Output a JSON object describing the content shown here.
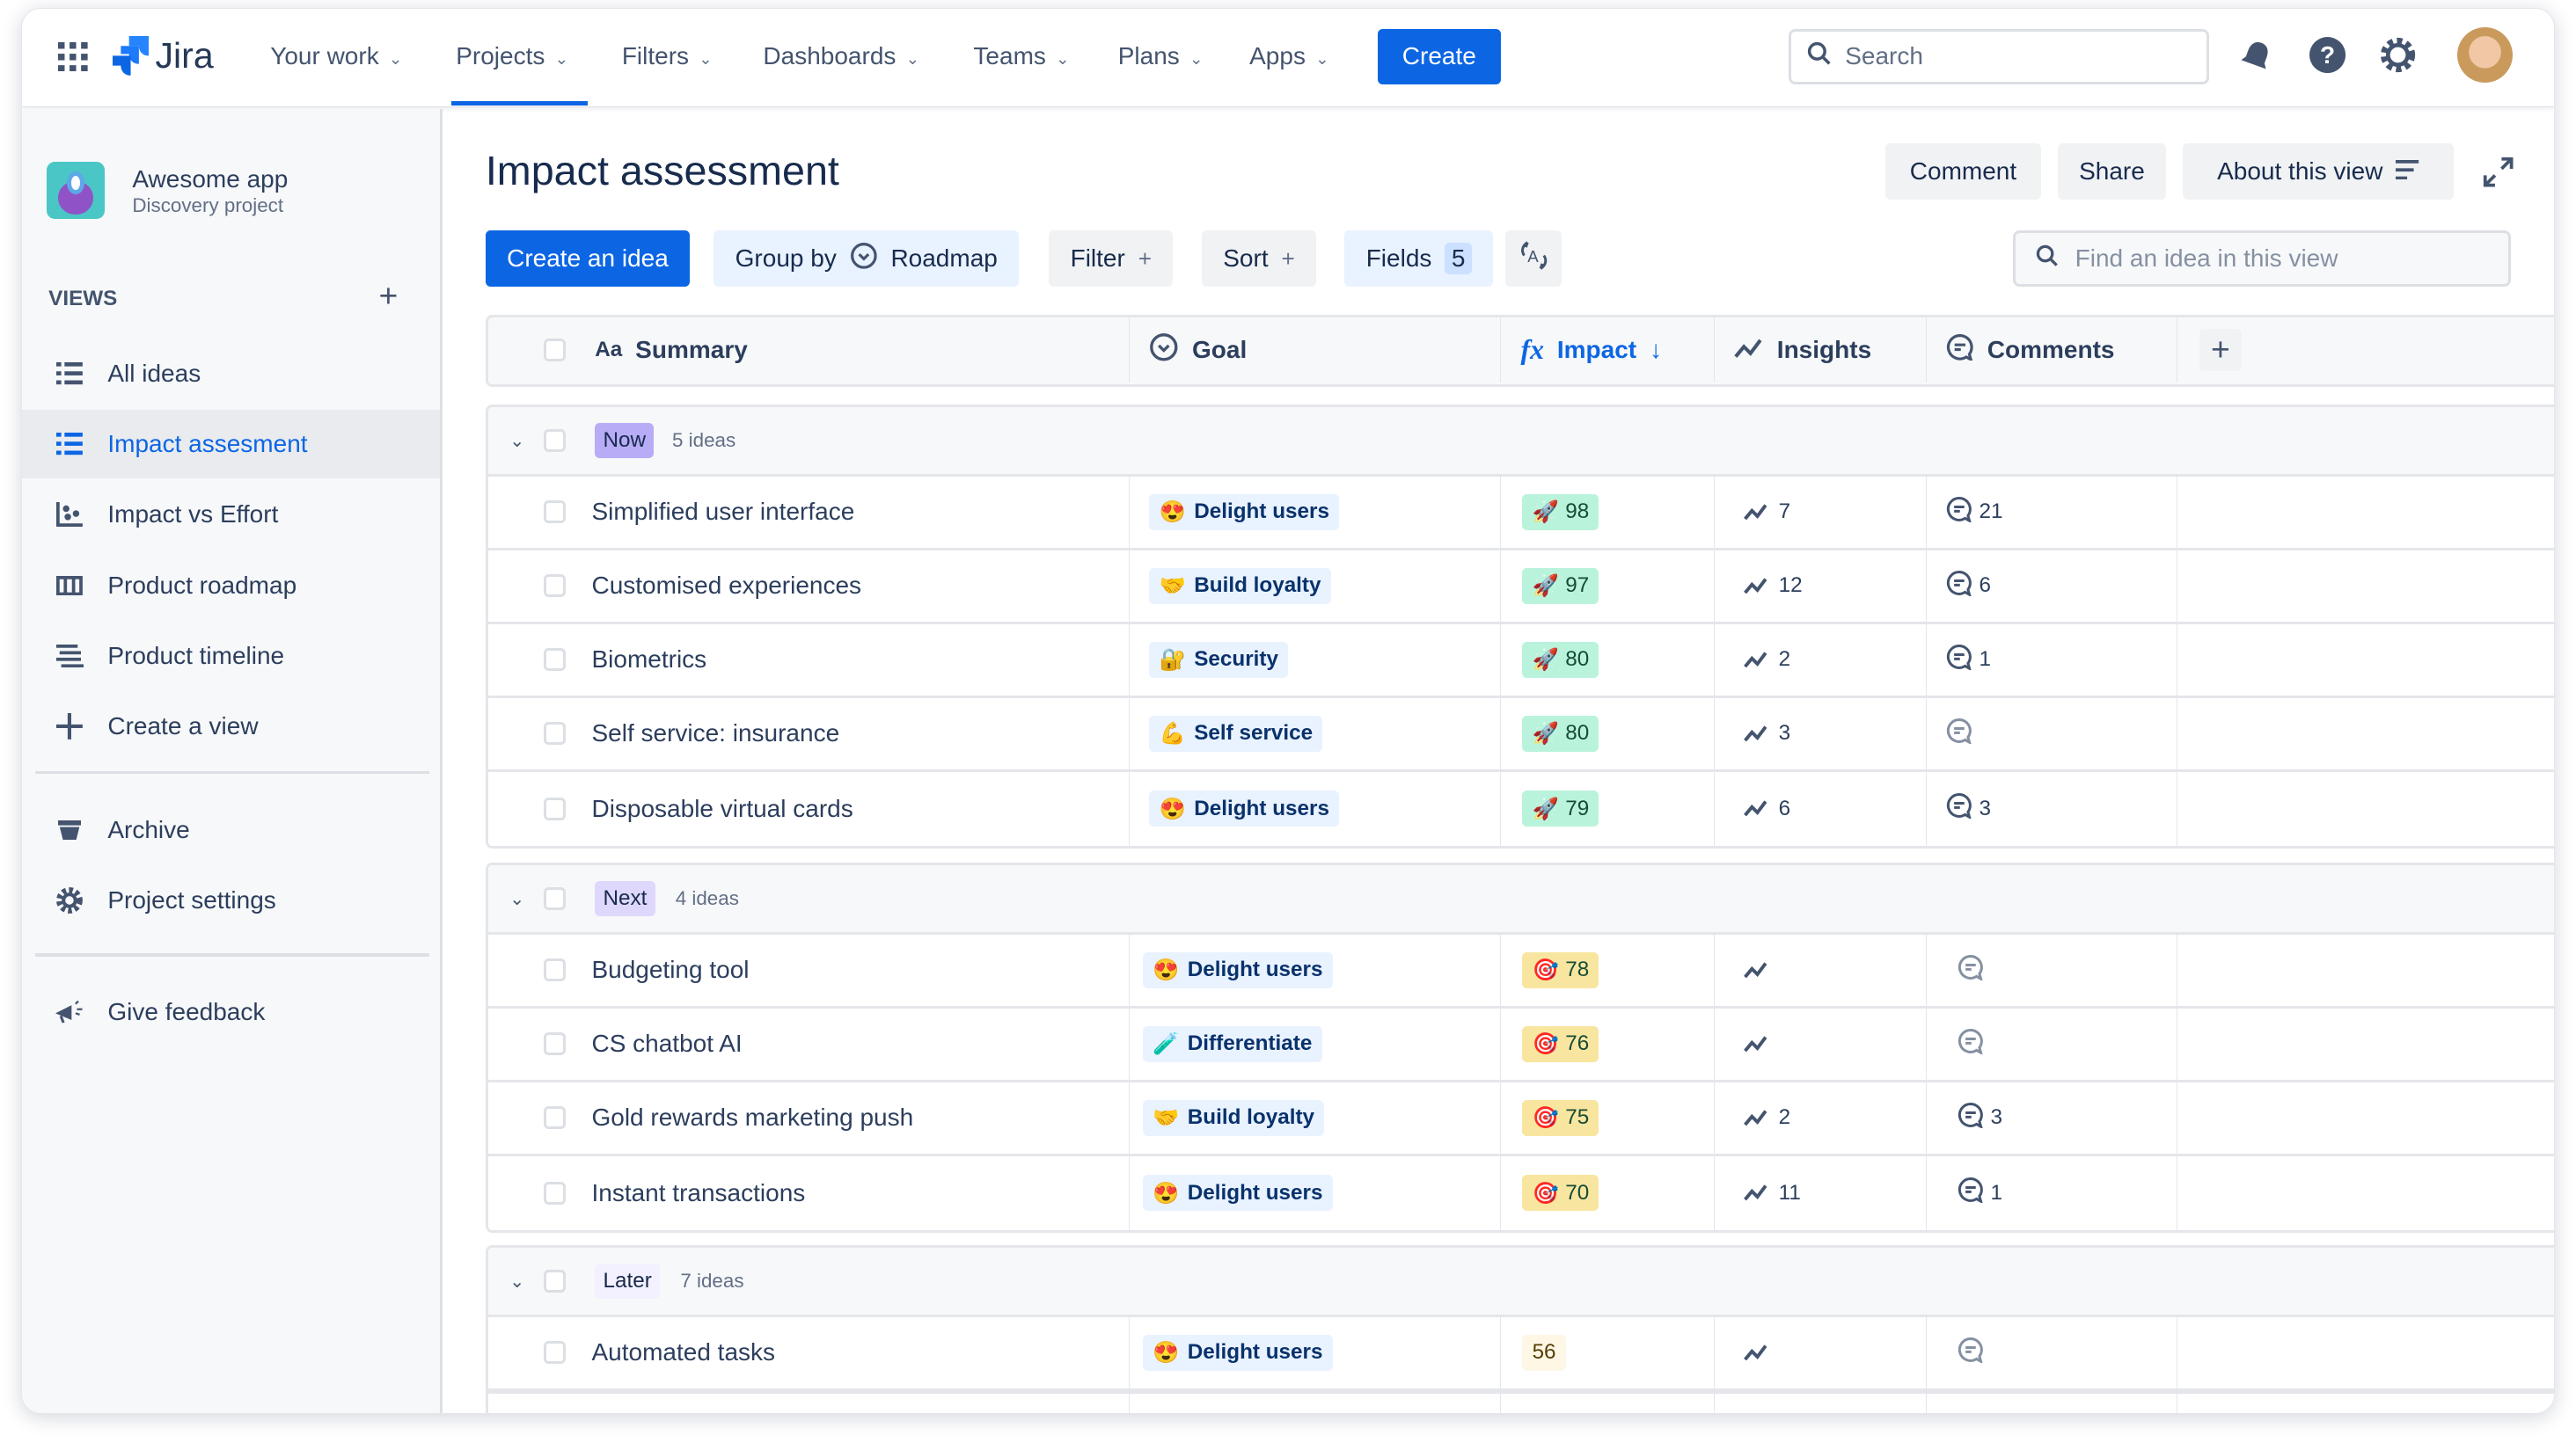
{
  "nav": {
    "product": "Jira",
    "items": [
      "Your work",
      "Projects",
      "Filters",
      "Dashboards",
      "Teams",
      "Plans",
      "Apps"
    ],
    "active": "Projects",
    "create": "Create",
    "search_placeholder": "Search"
  },
  "sidebar": {
    "project_name": "Awesome app",
    "project_type": "Discovery project",
    "views_label": "VIEWS",
    "views": [
      {
        "label": "All ideas",
        "icon": "list-icon"
      },
      {
        "label": "Impact assesment",
        "icon": "list-icon",
        "active": true
      },
      {
        "label": "Impact vs Effort",
        "icon": "matrix-icon"
      },
      {
        "label": "Product roadmap",
        "icon": "board-icon"
      },
      {
        "label": "Product timeline",
        "icon": "timeline-icon"
      },
      {
        "label": "Create a view",
        "icon": "plus-icon"
      }
    ],
    "archive": "Archive",
    "settings": "Project settings",
    "feedback": "Give feedback"
  },
  "main": {
    "title": "Impact assessment",
    "actions": {
      "comment": "Comment",
      "share": "Share",
      "about": "About this view"
    },
    "toolbar": {
      "create_idea": "Create an idea",
      "group_by": "Group by",
      "group_by_value": "Roadmap",
      "filter": "Filter",
      "sort": "Sort",
      "fields": "Fields",
      "fields_count": "5",
      "find_placeholder": "Find an idea in this view"
    },
    "columns": {
      "summary": "Summary",
      "summary_prefix": "Aa",
      "goal": "Goal",
      "impact": "Impact",
      "impact_prefix": "fx",
      "insights": "Insights",
      "comments": "Comments"
    },
    "groups": [
      {
        "label": "Now",
        "count": "5 ideas",
        "color": "#b8acf6",
        "rows": [
          {
            "summary": "Simplified user interface",
            "goal": "Delight users",
            "goal_emoji": "😍",
            "impact": "98",
            "impact_icon": "🚀",
            "insights": "7",
            "comments": "21"
          },
          {
            "summary": "Customised experiences",
            "goal": "Build loyalty",
            "goal_emoji": "🤝",
            "impact": "97",
            "impact_icon": "🚀",
            "insights": "12",
            "comments": "6"
          },
          {
            "summary": "Biometrics",
            "goal": "Security",
            "goal_emoji": "🔐",
            "impact": "80",
            "impact_icon": "🚀",
            "insights": "2",
            "comments": "1"
          },
          {
            "summary": "Self service: insurance",
            "goal": "Self service",
            "goal_emoji": "💪",
            "impact": "80",
            "impact_icon": "🚀",
            "insights": "3",
            "comments": ""
          },
          {
            "summary": "Disposable virtual cards",
            "goal": "Delight users",
            "goal_emoji": "😍",
            "impact": "79",
            "impact_icon": "🚀",
            "insights": "6",
            "comments": "3"
          }
        ]
      },
      {
        "label": "Next",
        "count": "4 ideas",
        "color": "#dfd8fd",
        "rows": [
          {
            "summary": "Budgeting tool",
            "goal": "Delight users",
            "goal_emoji": "😍",
            "impact": "78",
            "impact_icon": "🎯",
            "insights": "",
            "comments": ""
          },
          {
            "summary": "CS chatbot AI",
            "goal": "Differentiate",
            "goal_emoji": "🧪",
            "impact": "76",
            "impact_icon": "🎯",
            "insights": "",
            "comments": ""
          },
          {
            "summary": "Gold rewards marketing push",
            "goal": "Build loyalty",
            "goal_emoji": "🤝",
            "impact": "75",
            "impact_icon": "🎯",
            "insights": "2",
            "comments": "3"
          },
          {
            "summary": "Instant transactions",
            "goal": "Delight users",
            "goal_emoji": "😍",
            "impact": "70",
            "impact_icon": "🎯",
            "insights": "11",
            "comments": "1"
          }
        ]
      },
      {
        "label": "Later",
        "count": "7 ideas",
        "color": "#f3f0ff",
        "rows": [
          {
            "summary": "Automated tasks",
            "goal": "Delight users",
            "goal_emoji": "😍",
            "impact": "56",
            "impact_icon": "",
            "insights": "",
            "comments": ""
          }
        ]
      }
    ],
    "impact_colors": {
      "Now": "#baf3db",
      "Next": "#f8e6a0",
      "Later": "#fff7e6"
    },
    "accent": "#0c66e4"
  }
}
